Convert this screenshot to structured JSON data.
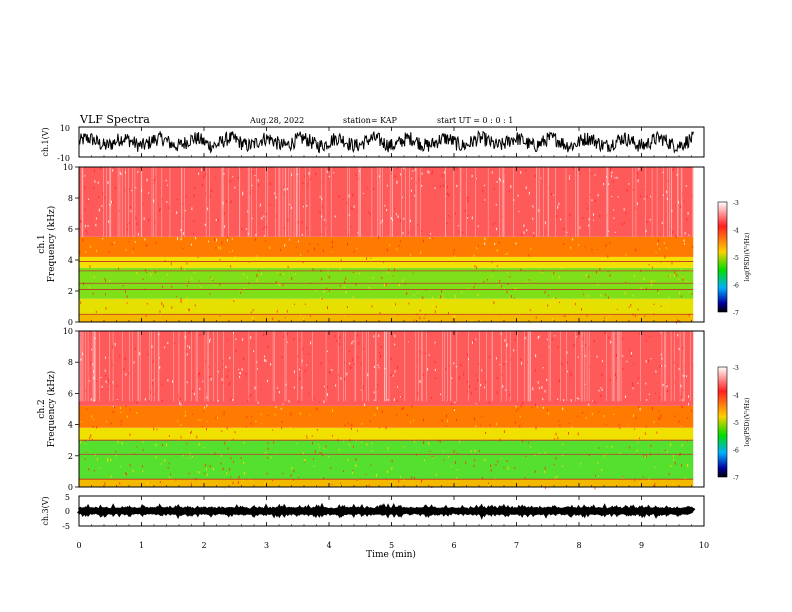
{
  "header": {
    "title": "VLF Spectra",
    "date": "Aug.28, 2022",
    "station": "station= KAP",
    "start": "start UT =  0 : 0 : 1"
  },
  "chart_data": [
    {
      "type": "line",
      "name": "ch1-waveform",
      "ylabel": "ch.1(V)",
      "ylim": [
        -10,
        10
      ],
      "yticks": [
        "10",
        "-10"
      ],
      "xlim": [
        0,
        10
      ],
      "x_end": 9.83,
      "y_center": 0,
      "y_amplitude": 6
    },
    {
      "type": "heatmap",
      "name": "ch1-spectrogram",
      "ylabel_top": "ch.1",
      "ylabel": "Frequency (kHz)",
      "ylim": [
        0,
        10
      ],
      "yticks": [
        "0",
        "2",
        "4",
        "6",
        "8",
        "10"
      ],
      "xlim": [
        0,
        10
      ],
      "x_end": 9.83,
      "bands": [
        {
          "from": 0,
          "to": 0.5,
          "color": "#f5b800"
        },
        {
          "from": 0.5,
          "to": 1.5,
          "color": "#e6e000"
        },
        {
          "from": 1.5,
          "to": 3.5,
          "color": "#7fe01a"
        },
        {
          "from": 3.5,
          "to": 4.2,
          "color": "#f4e000"
        },
        {
          "from": 4.2,
          "to": 5.5,
          "color": "#ff7a00"
        },
        {
          "from": 5.5,
          "to": 10,
          "color": "#ff5a5a"
        }
      ],
      "lines_khz": [
        0.5,
        2.1,
        2.5,
        3.3,
        3.9
      ]
    },
    {
      "type": "heatmap",
      "name": "ch2-spectrogram",
      "ylabel_top": "ch.2",
      "ylabel": "Frequency (kHz)",
      "ylim": [
        0,
        10
      ],
      "yticks": [
        "0",
        "2",
        "4",
        "6",
        "8",
        "10"
      ],
      "xlim": [
        0,
        10
      ],
      "x_end": 9.83,
      "bands": [
        {
          "from": 0,
          "to": 0.5,
          "color": "#f5b800"
        },
        {
          "from": 0.5,
          "to": 3.0,
          "color": "#55e030"
        },
        {
          "from": 3.0,
          "to": 3.8,
          "color": "#f0e000"
        },
        {
          "from": 3.8,
          "to": 5.2,
          "color": "#ff7a00"
        },
        {
          "from": 5.2,
          "to": 10,
          "color": "#ff5a5a"
        }
      ],
      "lines_khz": [
        0.5,
        2.1,
        3.0
      ]
    },
    {
      "type": "line",
      "name": "ch3-waveform",
      "ylabel": "ch.3(V)",
      "ylim": [
        -5,
        5
      ],
      "yticks": [
        "5",
        "0",
        "-5"
      ],
      "xlim": [
        0,
        10
      ],
      "x_end": 9.83,
      "y_center": 0,
      "y_amplitude": 0.6
    }
  ],
  "x_axis": {
    "label": "Time (min)",
    "ticks": [
      "0",
      "1",
      "2",
      "3",
      "4",
      "5",
      "6",
      "7",
      "8",
      "9",
      "10"
    ]
  },
  "colorbar": {
    "label": "log(PSD)(V²/Hz)",
    "ticks": [
      "-3",
      "-4",
      "-5",
      "-6",
      "-7"
    ],
    "range": [
      -7,
      -3
    ],
    "stops": [
      "#ffffff",
      "#ff2020",
      "#ffd000",
      "#00dd00",
      "#00b0ff",
      "#0000a0",
      "#000000"
    ]
  }
}
